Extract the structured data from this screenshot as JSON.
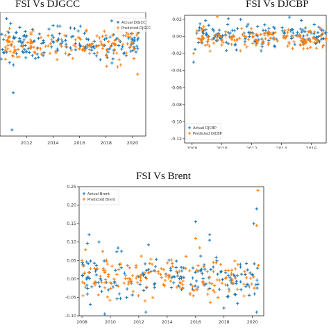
{
  "colors": {
    "actual": "#1f77b4",
    "predicted": "#ff7f0e",
    "frame": "#222222",
    "tick": "#333333"
  },
  "charts": [
    {
      "title": "FSI Vs DJGCC",
      "chart_data": {
        "type": "scatter",
        "title": "FSI Vs DJGCC",
        "x_range": [
          2010.0,
          2021.0
        ],
        "x_ticks": [
          "2012",
          "2014",
          "2016",
          "2018",
          "2020"
        ],
        "x_tick_values": [
          2012,
          2014,
          2016,
          2018,
          2020
        ],
        "y_range": [
          -0.15,
          0.05
        ],
        "y_ticks": [],
        "legend": {
          "position": "top-right",
          "entries": [
            "Actual DJGCC",
            "Predicted DJGCC"
          ]
        },
        "series": [
          {
            "name": "Actual DJGCC",
            "center": 0.0,
            "spread": 0.014,
            "x_start": 2010.0,
            "x_end": 2020.6,
            "n": 150,
            "outliers": [
              [
                2010.5,
                0.04
              ],
              [
                2010.9,
                -0.14
              ],
              [
                2011.0,
                -0.08
              ],
              [
                2015.9,
                0.02
              ],
              [
                2011.5,
                0.026
              ]
            ]
          },
          {
            "name": "Predicted DJGCC",
            "center": -0.002,
            "spread": 0.012,
            "x_start": 2010.0,
            "x_end": 2020.6,
            "n": 150,
            "outliers": [
              [
                2020.4,
                -0.05
              ],
              [
                2020.4,
                0.016
              ]
            ]
          }
        ]
      }
    },
    {
      "title": "FSI Vs DJCBP",
      "chart_data": {
        "type": "scatter",
        "title": "FSI Vs DJCBP",
        "x_range": [
          2007.5,
          2017.0
        ],
        "x_ticks": [
          "2008",
          "2010",
          "2012",
          "2014",
          "2016"
        ],
        "x_tick_values": [
          2008,
          2010,
          2012,
          2014,
          2016
        ],
        "y_range": [
          -0.125,
          0.025
        ],
        "y_ticks": [
          "0.02",
          "0.00",
          "-0.02",
          "-0.04",
          "-0.06",
          "-0.08",
          "-0.10",
          "-0.12"
        ],
        "y_tick_values": [
          0.02,
          0.0,
          -0.02,
          -0.04,
          -0.06,
          -0.08,
          -0.1,
          -0.12
        ],
        "legend": {
          "position": "bottom-left",
          "entries": [
            "Actual DJCBP",
            "Predicted DJCBP"
          ]
        },
        "series": [
          {
            "name": "Actual DJCBP",
            "center": 0.002,
            "spread": 0.007,
            "x_start": 2008.3,
            "x_end": 2017.0,
            "n": 150,
            "outliers": [
              [
                2008.1,
                -0.03
              ],
              [
                2008.2,
                -0.015
              ]
            ]
          },
          {
            "name": "Predicted DJCBP",
            "center": -0.002,
            "spread": 0.006,
            "x_start": 2008.3,
            "x_end": 2017.0,
            "n": 150,
            "outliers": [
              [
                2008.1,
                -0.02
              ]
            ]
          }
        ]
      }
    },
    {
      "title": "FSI Vs Brent",
      "chart_data": {
        "type": "scatter",
        "title": "FSI Vs Brent",
        "x_range": [
          2007.8,
          2020.8
        ],
        "x_ticks": [
          "2008",
          "2010",
          "2012",
          "2014",
          "2016",
          "2018",
          "2020"
        ],
        "x_tick_values": [
          2008,
          2010,
          2012,
          2014,
          2016,
          2018,
          2020
        ],
        "y_range": [
          -0.1,
          0.25
        ],
        "y_ticks": [
          "0.25",
          "0.20",
          "0.15",
          "0.10",
          "0.05",
          "0.00",
          "-0.05",
          "-0.10"
        ],
        "y_tick_values": [
          0.25,
          0.2,
          0.15,
          0.1,
          0.05,
          0.0,
          -0.05,
          -0.1
        ],
        "legend": {
          "position": "top-left",
          "entries": [
            "Actual Brent",
            "Predicted Brent"
          ]
        },
        "series": [
          {
            "name": "Actual Brent",
            "center": 0.01,
            "spread": 0.035,
            "x_start": 2008.0,
            "x_end": 2020.5,
            "n": 170,
            "outliers": [
              [
                2008.5,
                0.12
              ],
              [
                2009.2,
                0.1
              ],
              [
                2016.0,
                0.155
              ],
              [
                2017.0,
                0.12
              ],
              [
                2020.1,
                0.15
              ],
              [
                2020.3,
                0.19
              ],
              [
                2020.3,
                -0.09
              ],
              [
                2009.6,
                -0.095
              ],
              [
                2012.5,
                -0.09
              ]
            ]
          },
          {
            "name": "Predicted Brent",
            "center": 0.005,
            "spread": 0.028,
            "x_start": 2008.0,
            "x_end": 2020.5,
            "n": 170,
            "outliers": [
              [
                2020.4,
                0.24
              ],
              [
                2020.3,
                0.145
              ],
              [
                2016.0,
                0.11
              ],
              [
                2008.0,
                0.05
              ]
            ]
          }
        ]
      }
    }
  ]
}
